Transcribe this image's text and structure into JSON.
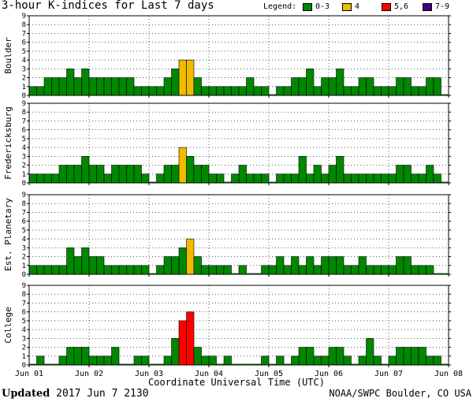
{
  "title": "3-hour K-indices for Last 7 days",
  "legend": {
    "label": "Legend:",
    "items": [
      {
        "label": "0-3",
        "color": "#008800"
      },
      {
        "label": "4",
        "color": "#eebb00"
      },
      {
        "label": "5,6",
        "color": "#ff0000"
      },
      {
        "label": "7-9",
        "color": "#440088"
      }
    ]
  },
  "footer": {
    "updated_label": "Updated",
    "updated_time": "2017 Jun  7 2130",
    "credit": "NOAA/SWPC Boulder, CO USA"
  },
  "chart_data": {
    "type": "bar",
    "xlabel": "Coordinate Universal Time (UTC)",
    "x_ticks": [
      "Jun 01",
      "Jun 02",
      "Jun 03",
      "Jun 04",
      "Jun 05",
      "Jun 06",
      "Jun 07",
      "Jun 08"
    ],
    "y_ticks": [
      "0",
      "1",
      "2",
      "3",
      "4",
      "5",
      "6",
      "7",
      "8",
      "9"
    ],
    "ylim": [
      0,
      9
    ],
    "interval_hours": 3,
    "grid": "dotted",
    "panels": [
      {
        "name": "Boulder",
        "values": [
          1,
          1,
          2,
          2,
          2,
          3,
          2,
          3,
          2,
          2,
          2,
          2,
          2,
          2,
          1,
          1,
          1,
          1,
          2,
          3,
          4,
          4,
          2,
          1,
          1,
          1,
          1,
          1,
          1,
          2,
          1,
          1,
          0,
          1,
          1,
          2,
          2,
          3,
          1,
          2,
          2,
          3,
          1,
          1,
          2,
          2,
          1,
          1,
          1,
          2,
          2,
          1,
          1,
          2,
          2,
          0
        ]
      },
      {
        "name": "Fredericksburg",
        "values": [
          1,
          1,
          1,
          1,
          2,
          2,
          2,
          3,
          2,
          2,
          1,
          2,
          2,
          2,
          2,
          1,
          0,
          1,
          2,
          2,
          4,
          3,
          2,
          2,
          1,
          1,
          0,
          1,
          2,
          1,
          1,
          1,
          0,
          1,
          1,
          1,
          3,
          1,
          2,
          1,
          2,
          3,
          1,
          1,
          1,
          1,
          1,
          1,
          1,
          2,
          2,
          1,
          1,
          2,
          1,
          0
        ]
      },
      {
        "name": "Est. Planetary",
        "values": [
          1,
          1,
          1,
          1,
          1,
          3,
          2,
          3,
          2,
          2,
          1,
          1,
          1,
          1,
          1,
          1,
          0,
          1,
          2,
          2,
          3,
          4,
          2,
          1,
          1,
          1,
          1,
          0,
          1,
          0,
          0,
          1,
          1,
          2,
          1,
          2,
          1,
          2,
          1,
          2,
          2,
          2,
          1,
          1,
          2,
          1,
          1,
          1,
          1,
          2,
          2,
          1,
          1,
          1,
          0,
          0
        ]
      },
      {
        "name": "College",
        "values": [
          0,
          1,
          0,
          0,
          1,
          2,
          2,
          2,
          1,
          1,
          1,
          2,
          0,
          0,
          1,
          1,
          0,
          0,
          1,
          3,
          5,
          6,
          2,
          1,
          1,
          0,
          1,
          0,
          0,
          0,
          0,
          1,
          0,
          1,
          0,
          1,
          2,
          2,
          1,
          1,
          2,
          2,
          1,
          0,
          1,
          3,
          1,
          0,
          1,
          2,
          2,
          2,
          2,
          1,
          1,
          0
        ]
      }
    ]
  }
}
